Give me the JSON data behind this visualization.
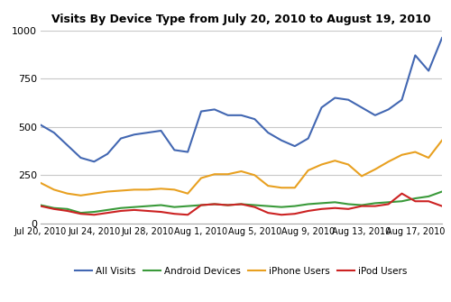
{
  "title": "Visits By Device Type from July 20, 2010 to August 19, 2010",
  "x_labels": [
    "Jul 20, 2010",
    "Jul 24, 2010",
    "Jul 28, 2010",
    "Aug 1, 2010",
    "Aug 5, 2010",
    "Aug 9, 2010",
    "Aug 13, 2010",
    "Aug 17, 2010"
  ],
  "x_tick_positions": [
    0,
    4,
    8,
    12,
    16,
    20,
    24,
    28
  ],
  "ylim": [
    0,
    1000
  ],
  "yticks": [
    0,
    250,
    500,
    750,
    1000
  ],
  "all_visits": [
    510,
    470,
    405,
    340,
    320,
    360,
    440,
    460,
    470,
    480,
    380,
    370,
    580,
    590,
    560,
    560,
    540,
    470,
    430,
    400,
    440,
    600,
    650,
    640,
    600,
    560,
    590,
    640,
    870,
    790,
    960
  ],
  "android_devices": [
    95,
    80,
    75,
    55,
    60,
    70,
    80,
    85,
    90,
    95,
    85,
    90,
    95,
    100,
    95,
    100,
    95,
    90,
    85,
    90,
    100,
    105,
    110,
    100,
    95,
    105,
    110,
    115,
    130,
    140,
    165
  ],
  "iphone_users": [
    210,
    175,
    155,
    145,
    155,
    165,
    170,
    175,
    175,
    180,
    175,
    155,
    235,
    255,
    255,
    270,
    250,
    195,
    185,
    185,
    275,
    305,
    325,
    305,
    245,
    280,
    320,
    355,
    370,
    340,
    430
  ],
  "ipod_users": [
    90,
    75,
    65,
    50,
    45,
    55,
    65,
    70,
    65,
    60,
    50,
    45,
    95,
    100,
    95,
    100,
    85,
    55,
    45,
    50,
    65,
    75,
    80,
    75,
    90,
    90,
    100,
    155,
    115,
    115,
    90
  ],
  "colors": {
    "all_visits": "#4267b2",
    "android_devices": "#3a9a3a",
    "iphone_users": "#e8a020",
    "ipod_users": "#cc2222"
  },
  "legend_labels": [
    "All Visits",
    "Android Devices",
    "iPhone Users",
    "iPod Users"
  ],
  "background_color": "#ffffff",
  "grid_color": "#c8c8c8",
  "title_fontsize": 9,
  "tick_fontsize": 7,
  "legend_fontsize": 7.5
}
